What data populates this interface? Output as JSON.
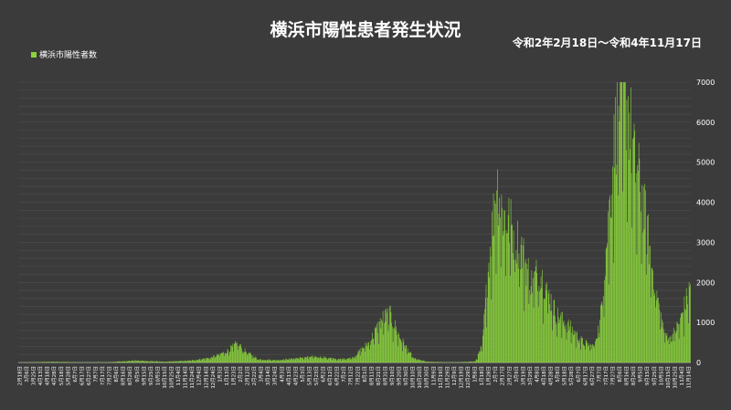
{
  "chart_data": {
    "type": "bar",
    "title": "横浜市陽性患者発生状況",
    "subtitle": "令和2年2月18日～令和4年11月17日",
    "legend_position": "top-left",
    "grid": true,
    "bar_color": "#8bd43c",
    "ylim": [
      0,
      7000
    ],
    "y_ticks": [
      0,
      1000,
      2000,
      3000,
      4000,
      5000,
      6000,
      7000
    ],
    "x_start": "2020-02-18",
    "x_end": "2022-11-17",
    "series": [
      {
        "name": "横浜市陽性者数",
        "points": [
          [
            "2020-02-18",
            0
          ],
          [
            "2020-04-10",
            20
          ],
          [
            "2020-05-25",
            5
          ],
          [
            "2020-07-01",
            10
          ],
          [
            "2020-08-10",
            50
          ],
          [
            "2020-09-25",
            20
          ],
          [
            "2020-11-01",
            50
          ],
          [
            "2020-12-01",
            120
          ],
          [
            "2020-12-25",
            280
          ],
          [
            "2021-01-10",
            480
          ],
          [
            "2021-01-20",
            300
          ],
          [
            "2021-02-10",
            80
          ],
          [
            "2021-03-10",
            60
          ],
          [
            "2021-04-15",
            120
          ],
          [
            "2021-05-10",
            150
          ],
          [
            "2021-06-10",
            80
          ],
          [
            "2021-07-01",
            120
          ],
          [
            "2021-07-25",
            500
          ],
          [
            "2021-08-15",
            1100
          ],
          [
            "2021-08-25",
            1200
          ],
          [
            "2021-09-10",
            600
          ],
          [
            "2021-09-30",
            100
          ],
          [
            "2021-10-20",
            20
          ],
          [
            "2021-12-01",
            5
          ],
          [
            "2021-12-31",
            30
          ],
          [
            "2022-01-10",
            400
          ],
          [
            "2022-01-20",
            2500
          ],
          [
            "2022-02-01",
            4500
          ],
          [
            "2022-02-10",
            3700
          ],
          [
            "2022-02-20",
            3500
          ],
          [
            "2022-03-10",
            2800
          ],
          [
            "2022-03-25",
            2000
          ],
          [
            "2022-04-05",
            2300
          ],
          [
            "2022-04-15",
            1900
          ],
          [
            "2022-05-01",
            1200
          ],
          [
            "2022-05-20",
            900
          ],
          [
            "2022-06-10",
            500
          ],
          [
            "2022-06-25",
            400
          ],
          [
            "2022-07-05",
            1000
          ],
          [
            "2022-07-20",
            4000
          ],
          [
            "2022-07-31",
            6400
          ],
          [
            "2022-08-05",
            7000
          ],
          [
            "2022-08-15",
            6500
          ],
          [
            "2022-08-25",
            5000
          ],
          [
            "2022-09-05",
            4300
          ],
          [
            "2022-09-20",
            2500
          ],
          [
            "2022-10-01",
            1400
          ],
          [
            "2022-10-10",
            700
          ],
          [
            "2022-10-20",
            650
          ],
          [
            "2022-11-01",
            1000
          ],
          [
            "2022-11-10",
            1500
          ],
          [
            "2022-11-17",
            1900
          ]
        ]
      }
    ],
    "x_tick_labels": [
      "2月18日",
      "3月6日",
      "3月25日",
      "4月13日",
      "4月18日",
      "4月28日",
      "5月18日",
      "5月28日",
      "6月7日",
      "6月17日",
      "6月27日",
      "7月7日",
      "7月17日",
      "7月27日",
      "8月6日",
      "8月16日",
      "8月26日",
      "9月5日",
      "9月15日",
      "9月25日",
      "10月5日",
      "10月15日",
      "10月25日",
      "11月4日",
      "11月14日",
      "11月24日",
      "12月4日",
      "12月14日",
      "12月24日",
      "1月3日",
      "1月13日",
      "1月23日",
      "2月2日",
      "2月12日",
      "2月22日",
      "3月4日",
      "3月14日",
      "3月24日",
      "4月3日",
      "4月13日",
      "4月23日",
      "5月3日",
      "5月13日",
      "5月23日",
      "6月2日",
      "6月12日",
      "6月22日",
      "7月2日",
      "7月12日",
      "7月22日",
      "8月1日",
      "8月11日",
      "8月21日",
      "8月31日",
      "9月10日",
      "9月20日",
      "9月30日",
      "10月10日",
      "10月20日",
      "10月30日",
      "11月9日",
      "11月19日",
      "11月29日",
      "12月9日",
      "12月19日",
      "12月29日",
      "1月8日",
      "1月18日",
      "1月28日",
      "2月7日",
      "2月17日",
      "2月27日",
      "3月9日",
      "3月19日",
      "3月29日",
      "4月8日",
      "4月18日",
      "4月28日",
      "5月8日",
      "5月18日",
      "5月28日",
      "6月7日",
      "6月17日",
      "6月27日",
      "7月7日",
      "7月17日",
      "7月27日",
      "8月6日",
      "8月16日",
      "8月26日",
      "9月5日",
      "9月15日",
      "9月25日",
      "10月5日",
      "10月15日",
      "10月25日",
      "11月4日",
      "11月14日"
    ]
  }
}
